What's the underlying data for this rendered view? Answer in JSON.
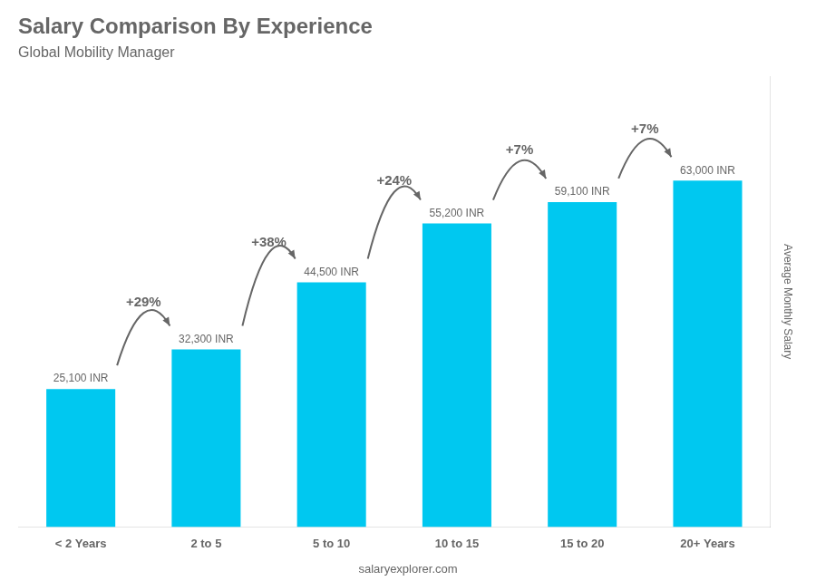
{
  "chart_data": {
    "type": "bar",
    "title": "Salary Comparison By Experience",
    "subtitle": "Global Mobility Manager",
    "categories": [
      "< 2 Years",
      "2 to 5",
      "5 to 10",
      "10 to 15",
      "15 to 20",
      "20+ Years"
    ],
    "values": [
      25100,
      32300,
      44500,
      55200,
      59100,
      63000
    ],
    "value_labels": [
      "25,100 INR",
      "32,300 INR",
      "44,500 INR",
      "55,200 INR",
      "59,100 INR",
      "63,000 INR"
    ],
    "data_labels": true,
    "color": "#00c8f0",
    "ylabel": "Average Monthly Salary",
    "ylim": [
      0,
      82000
    ],
    "tick_labels": "x",
    "grid": false,
    "annotations": [
      "+29%",
      "+38%",
      "+24%",
      "+7%",
      "+7%"
    ],
    "footer": "salaryexplorer.com"
  }
}
